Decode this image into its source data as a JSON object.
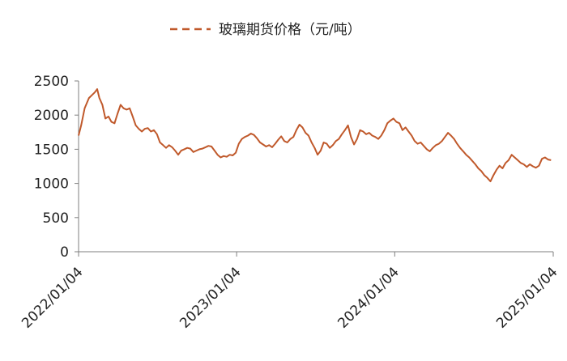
{
  "colors": {
    "series": "#c0592b",
    "axis": "#7f7f7f",
    "text": "#222222",
    "background": "#ffffff"
  },
  "chart_data": {
    "type": "line",
    "title": "",
    "xlabel": "",
    "ylabel": "",
    "legend": {
      "position": "top-center",
      "style": "dashed"
    },
    "grid": false,
    "x_ticks": [
      "2022/01/04",
      "2023/01/04",
      "2024/01/04",
      "2025/01/04"
    ],
    "y_ticks": [
      0,
      500,
      1000,
      1500,
      2000,
      2500
    ],
    "xlim": [
      "2022-01-04",
      "2025-01-04"
    ],
    "ylim": [
      0,
      2500
    ],
    "series": [
      {
        "name": "玻璃期货价格（元/吨）",
        "color": "#c0592b",
        "points": [
          [
            "2022-01-04",
            1700
          ],
          [
            "2022-01-10",
            1850
          ],
          [
            "2022-01-18",
            2100
          ],
          [
            "2022-01-28",
            2250
          ],
          [
            "2022-02-10",
            2330
          ],
          [
            "2022-02-16",
            2380
          ],
          [
            "2022-02-21",
            2250
          ],
          [
            "2022-02-28",
            2150
          ],
          [
            "2022-03-07",
            1950
          ],
          [
            "2022-03-14",
            1980
          ],
          [
            "2022-03-21",
            1900
          ],
          [
            "2022-03-28",
            1880
          ],
          [
            "2022-04-04",
            2020
          ],
          [
            "2022-04-11",
            2150
          ],
          [
            "2022-04-18",
            2100
          ],
          [
            "2022-04-25",
            2080
          ],
          [
            "2022-05-02",
            2100
          ],
          [
            "2022-05-09",
            1980
          ],
          [
            "2022-05-16",
            1850
          ],
          [
            "2022-05-23",
            1800
          ],
          [
            "2022-05-30",
            1760
          ],
          [
            "2022-06-06",
            1800
          ],
          [
            "2022-06-13",
            1810
          ],
          [
            "2022-06-20",
            1760
          ],
          [
            "2022-06-27",
            1780
          ],
          [
            "2022-07-04",
            1720
          ],
          [
            "2022-07-11",
            1600
          ],
          [
            "2022-07-18",
            1560
          ],
          [
            "2022-07-25",
            1520
          ],
          [
            "2022-08-01",
            1560
          ],
          [
            "2022-08-08",
            1530
          ],
          [
            "2022-08-15",
            1480
          ],
          [
            "2022-08-22",
            1420
          ],
          [
            "2022-08-29",
            1480
          ],
          [
            "2022-09-05",
            1500
          ],
          [
            "2022-09-12",
            1520
          ],
          [
            "2022-09-19",
            1510
          ],
          [
            "2022-09-26",
            1460
          ],
          [
            "2022-10-03",
            1480
          ],
          [
            "2022-10-10",
            1500
          ],
          [
            "2022-10-17",
            1510
          ],
          [
            "2022-10-24",
            1530
          ],
          [
            "2022-10-31",
            1550
          ],
          [
            "2022-11-07",
            1540
          ],
          [
            "2022-11-14",
            1480
          ],
          [
            "2022-11-21",
            1420
          ],
          [
            "2022-11-28",
            1380
          ],
          [
            "2022-12-05",
            1400
          ],
          [
            "2022-12-12",
            1390
          ],
          [
            "2022-12-19",
            1420
          ],
          [
            "2022-12-26",
            1410
          ],
          [
            "2023-01-02",
            1450
          ],
          [
            "2023-01-09",
            1580
          ],
          [
            "2023-01-16",
            1650
          ],
          [
            "2023-01-23",
            1680
          ],
          [
            "2023-01-30",
            1700
          ],
          [
            "2023-02-06",
            1730
          ],
          [
            "2023-02-13",
            1710
          ],
          [
            "2023-02-20",
            1660
          ],
          [
            "2023-02-27",
            1600
          ],
          [
            "2023-03-06",
            1570
          ],
          [
            "2023-03-13",
            1540
          ],
          [
            "2023-03-20",
            1560
          ],
          [
            "2023-03-27",
            1530
          ],
          [
            "2023-04-03",
            1580
          ],
          [
            "2023-04-10",
            1640
          ],
          [
            "2023-04-17",
            1690
          ],
          [
            "2023-04-24",
            1620
          ],
          [
            "2023-05-01",
            1600
          ],
          [
            "2023-05-08",
            1650
          ],
          [
            "2023-05-15",
            1680
          ],
          [
            "2023-05-22",
            1780
          ],
          [
            "2023-05-29",
            1860
          ],
          [
            "2023-06-05",
            1820
          ],
          [
            "2023-06-12",
            1740
          ],
          [
            "2023-06-19",
            1700
          ],
          [
            "2023-06-26",
            1600
          ],
          [
            "2023-07-03",
            1520
          ],
          [
            "2023-07-10",
            1420
          ],
          [
            "2023-07-17",
            1480
          ],
          [
            "2023-07-24",
            1600
          ],
          [
            "2023-07-31",
            1580
          ],
          [
            "2023-08-07",
            1520
          ],
          [
            "2023-08-14",
            1560
          ],
          [
            "2023-08-21",
            1620
          ],
          [
            "2023-08-28",
            1650
          ],
          [
            "2023-09-04",
            1720
          ],
          [
            "2023-09-11",
            1780
          ],
          [
            "2023-09-18",
            1850
          ],
          [
            "2023-09-25",
            1680
          ],
          [
            "2023-10-02",
            1570
          ],
          [
            "2023-10-09",
            1650
          ],
          [
            "2023-10-16",
            1780
          ],
          [
            "2023-10-23",
            1760
          ],
          [
            "2023-10-30",
            1720
          ],
          [
            "2023-11-06",
            1740
          ],
          [
            "2023-11-13",
            1700
          ],
          [
            "2023-11-20",
            1680
          ],
          [
            "2023-11-27",
            1650
          ],
          [
            "2023-12-04",
            1700
          ],
          [
            "2023-12-11",
            1780
          ],
          [
            "2023-12-18",
            1880
          ],
          [
            "2023-12-25",
            1920
          ],
          [
            "2024-01-01",
            1950
          ],
          [
            "2024-01-08",
            1900
          ],
          [
            "2024-01-15",
            1880
          ],
          [
            "2024-01-22",
            1780
          ],
          [
            "2024-01-29",
            1820
          ],
          [
            "2024-02-05",
            1760
          ],
          [
            "2024-02-12",
            1700
          ],
          [
            "2024-02-19",
            1620
          ],
          [
            "2024-02-26",
            1580
          ],
          [
            "2024-03-04",
            1600
          ],
          [
            "2024-03-11",
            1550
          ],
          [
            "2024-03-18",
            1500
          ],
          [
            "2024-03-25",
            1470
          ],
          [
            "2024-04-01",
            1520
          ],
          [
            "2024-04-08",
            1560
          ],
          [
            "2024-04-15",
            1580
          ],
          [
            "2024-04-22",
            1620
          ],
          [
            "2024-04-29",
            1680
          ],
          [
            "2024-05-06",
            1740
          ],
          [
            "2024-05-13",
            1700
          ],
          [
            "2024-05-20",
            1650
          ],
          [
            "2024-05-27",
            1580
          ],
          [
            "2024-06-03",
            1520
          ],
          [
            "2024-06-10",
            1470
          ],
          [
            "2024-06-17",
            1420
          ],
          [
            "2024-06-24",
            1380
          ],
          [
            "2024-07-01",
            1330
          ],
          [
            "2024-07-08",
            1280
          ],
          [
            "2024-07-15",
            1220
          ],
          [
            "2024-07-22",
            1180
          ],
          [
            "2024-07-29",
            1120
          ],
          [
            "2024-08-05",
            1080
          ],
          [
            "2024-08-12",
            1030
          ],
          [
            "2024-08-19",
            1120
          ],
          [
            "2024-08-26",
            1200
          ],
          [
            "2024-09-02",
            1260
          ],
          [
            "2024-09-09",
            1220
          ],
          [
            "2024-09-16",
            1300
          ],
          [
            "2024-09-23",
            1340
          ],
          [
            "2024-09-30",
            1420
          ],
          [
            "2024-10-07",
            1380
          ],
          [
            "2024-10-14",
            1340
          ],
          [
            "2024-10-21",
            1300
          ],
          [
            "2024-10-28",
            1280
          ],
          [
            "2024-11-04",
            1240
          ],
          [
            "2024-11-11",
            1280
          ],
          [
            "2024-11-18",
            1250
          ],
          [
            "2024-11-25",
            1230
          ],
          [
            "2024-12-02",
            1260
          ],
          [
            "2024-12-09",
            1360
          ],
          [
            "2024-12-16",
            1380
          ],
          [
            "2024-12-23",
            1350
          ],
          [
            "2024-12-30",
            1340
          ]
        ]
      }
    ]
  }
}
